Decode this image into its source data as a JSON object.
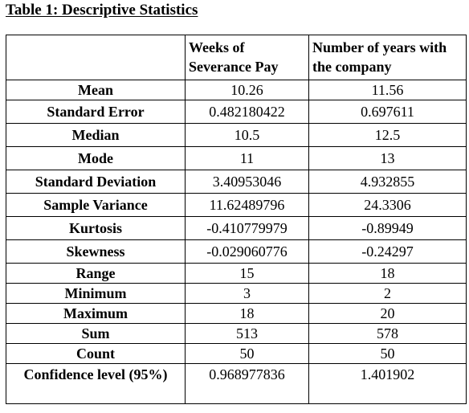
{
  "title": "Table 1: Descriptive Statistics",
  "columns": [
    "",
    "Weeks of Severance Pay",
    "Number of years with the company"
  ],
  "rows": [
    {
      "label": "Mean",
      "v1": "10.26",
      "v2": "11.56"
    },
    {
      "label": "Standard Error",
      "v1": "0.482180422",
      "v2": "0.697611"
    },
    {
      "label": "Median",
      "v1": "10.5",
      "v2": "12.5"
    },
    {
      "label": "Mode",
      "v1": "11",
      "v2": "13"
    },
    {
      "label": "Standard Deviation",
      "v1": "3.40953046",
      "v2": "4.932855"
    },
    {
      "label": "Sample Variance",
      "v1": "11.62489796",
      "v2": "24.3306"
    },
    {
      "label": "Kurtosis",
      "v1": "-0.410779979",
      "v2": "-0.89949"
    },
    {
      "label": "Skewness",
      "v1": "-0.029060776",
      "v2": "-0.24297"
    },
    {
      "label": "Range",
      "v1": "15",
      "v2": "18"
    },
    {
      "label": "Minimum",
      "v1": "3",
      "v2": "2"
    },
    {
      "label": "Maximum",
      "v1": "18",
      "v2": "20"
    },
    {
      "label": "Sum",
      "v1": "513",
      "v2": "578"
    },
    {
      "label": "Count",
      "v1": "50",
      "v2": "50"
    },
    {
      "label": "Confidence level (95%)",
      "v1": "0.968977836",
      "v2": "1.401902"
    }
  ]
}
